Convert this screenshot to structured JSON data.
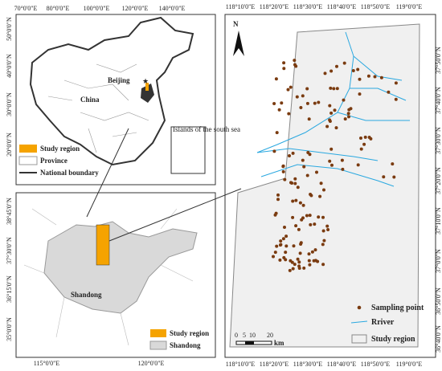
{
  "china_map": {
    "top_ticks": [
      "70°0'0\"E",
      "80°0'0\"E",
      "100°0'0\"E",
      "120°0'0\"E",
      "140°0'0\"E"
    ],
    "left_ticks": [
      "50°0'0\"N",
      "40°0'0\"N",
      "30°0'0\"N",
      "20°0'0\"N"
    ],
    "country_label": "China",
    "capital_label": "Beijing",
    "inset_label": "Islands of the south sea",
    "legend": [
      "Study region",
      "Province",
      "National boundary"
    ]
  },
  "shandong_map": {
    "bottom_ticks": [
      "115°0'0\"E",
      "120°0'0\"E"
    ],
    "left_ticks": [
      "38°45'0\"N",
      "37°30'0\"N",
      "36°15'0\"N",
      "35°0'0\"N"
    ],
    "province_label": "Shandong",
    "legend": [
      "Study region",
      "Shandong"
    ]
  },
  "study_map": {
    "top_ticks": [
      "118°10'0\"E",
      "118°20'0\"E",
      "118°30'0\"E",
      "118°40'0\"E",
      "118°50'0\"E",
      "119°0'0\"E"
    ],
    "bottom_ticks": [
      "118°10'0\"E",
      "118°20'0\"E",
      "118°30'0\"E",
      "118°40'0\"E",
      "118°50'0\"E",
      "119°0'0\"E"
    ],
    "right_ticks": [
      "37°50'0\"N",
      "37°40'0\"N",
      "37°30'0\"N",
      "37°20'0\"N",
      "37°10'0\"N",
      "37°0'0\"N",
      "36°50'0\"N",
      "36°40'0\"N"
    ],
    "north_label": "N",
    "scale_labels": [
      "0",
      "5",
      "10",
      "20"
    ],
    "scale_unit": "km",
    "legend": [
      "Sampling point",
      "Rriver",
      "Study region"
    ]
  }
}
